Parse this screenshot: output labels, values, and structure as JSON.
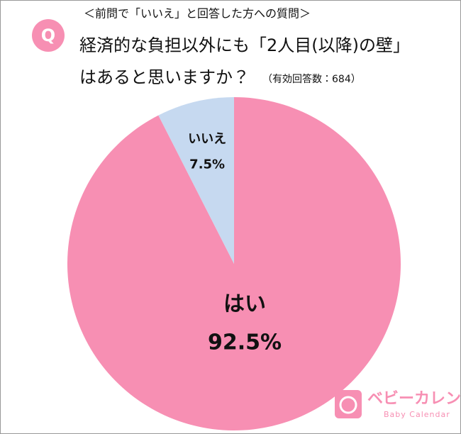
{
  "chart_data": {
    "type": "pie",
    "badge": "Q",
    "subtitle": "＜前問で「いいえ」と回答した方への質問＞",
    "title": [
      "経済的な負担以外にも「2人目(以降)の壁」",
      "はあると思いますか？"
    ],
    "note": "（有効回答数：684）",
    "categories": [
      "はい",
      "いいえ"
    ],
    "values": [
      92.5,
      7.5
    ],
    "value_labels": [
      "92.5%",
      "7.5%"
    ],
    "colors": [
      "#f78fb3",
      "#c6d9f0"
    ]
  },
  "brand": {
    "name": "ベビーカレンダー",
    "tagline": "Baby Calendar"
  }
}
